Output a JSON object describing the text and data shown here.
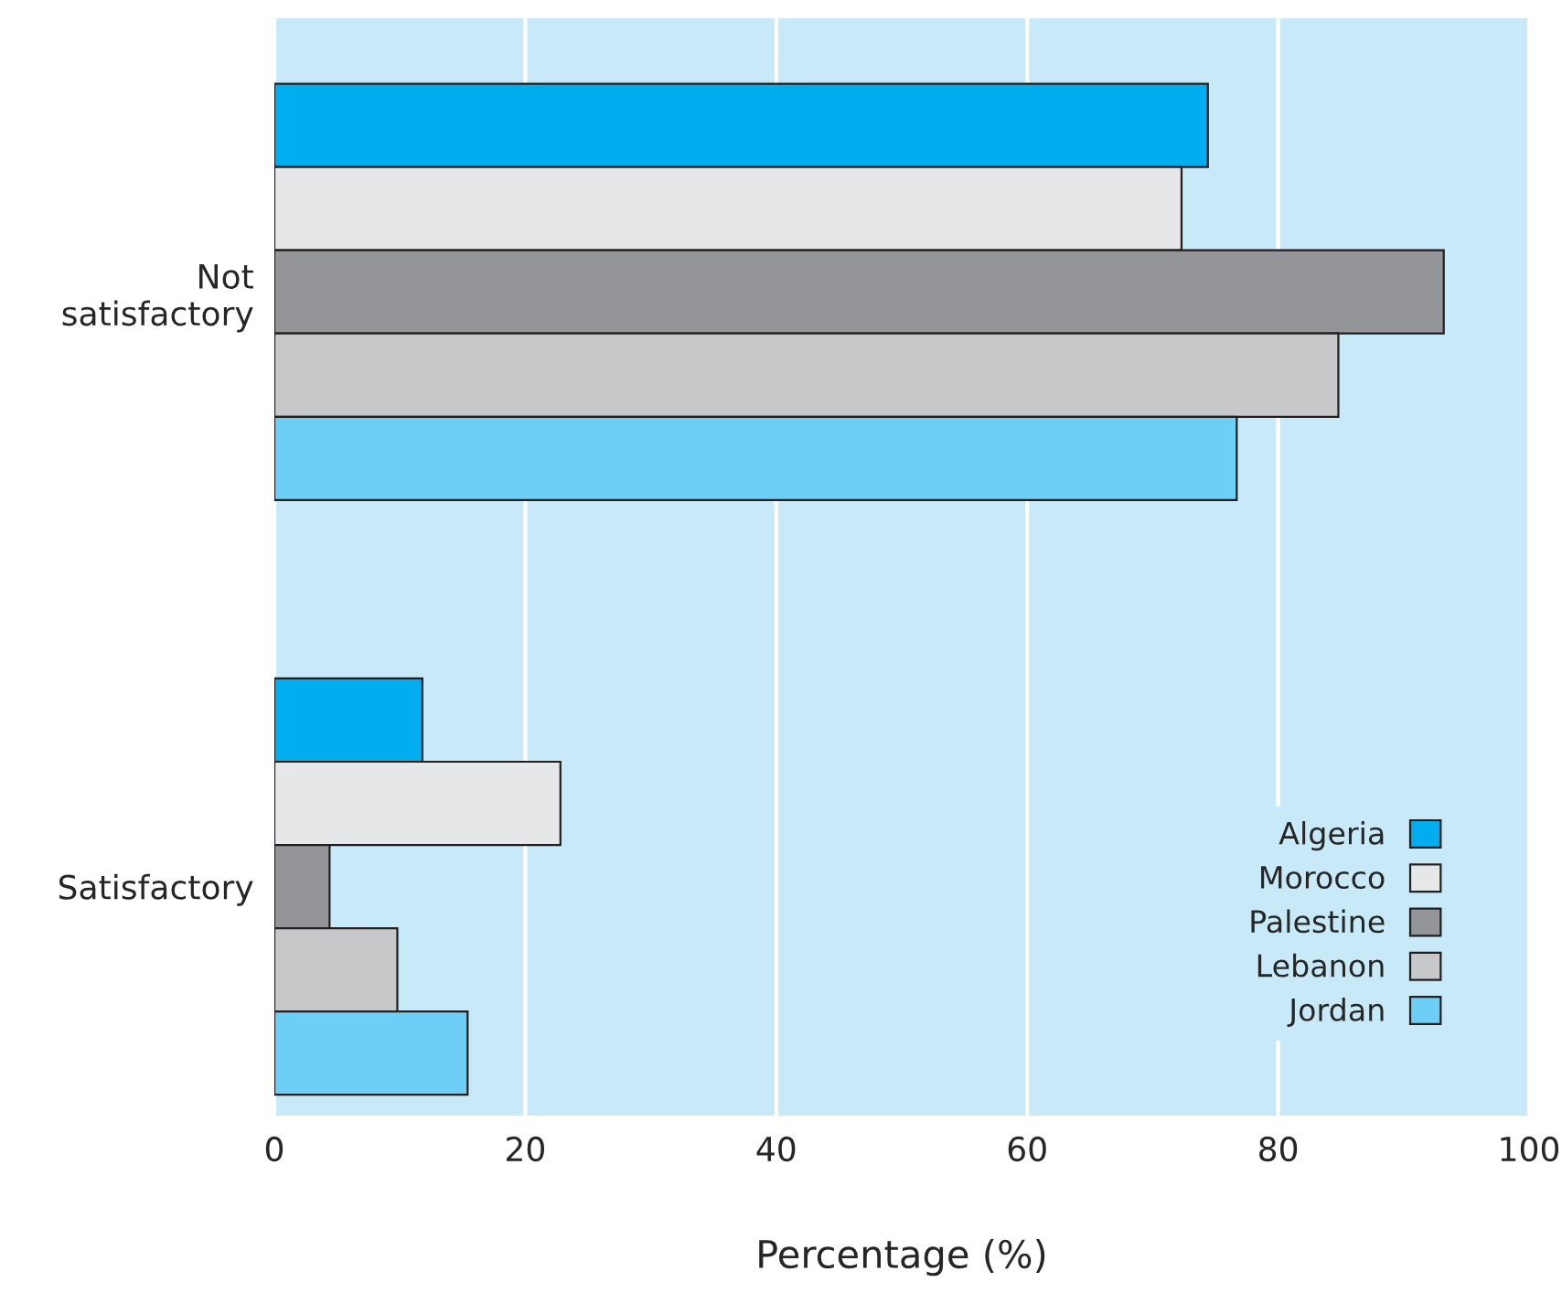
{
  "chart_data": {
    "type": "bar",
    "orientation": "horizontal",
    "xlabel": "Percentage (%)",
    "categories": [
      "Not\nsatisfactory",
      "Satisfactory"
    ],
    "series": [
      {
        "name": "Algeria",
        "color": "#00aeef",
        "values": [
          74.4,
          11.8
        ]
      },
      {
        "name": "Morocco",
        "color": "#e6e7e8",
        "values": [
          72.3,
          22.8
        ]
      },
      {
        "name": "Palestine",
        "color": "#939598",
        "values": [
          93.2,
          4.4
        ]
      },
      {
        "name": "Lebanon",
        "color": "#c7c8ca",
        "values": [
          84.8,
          9.8
        ]
      },
      {
        "name": "Jordan",
        "color": "#6dcff6",
        "values": [
          76.7,
          15.4
        ]
      }
    ],
    "xlim": [
      0,
      100
    ],
    "xticks": [
      0,
      20,
      40,
      60,
      80,
      100
    ],
    "grid": "x",
    "legend": "bottom right"
  }
}
